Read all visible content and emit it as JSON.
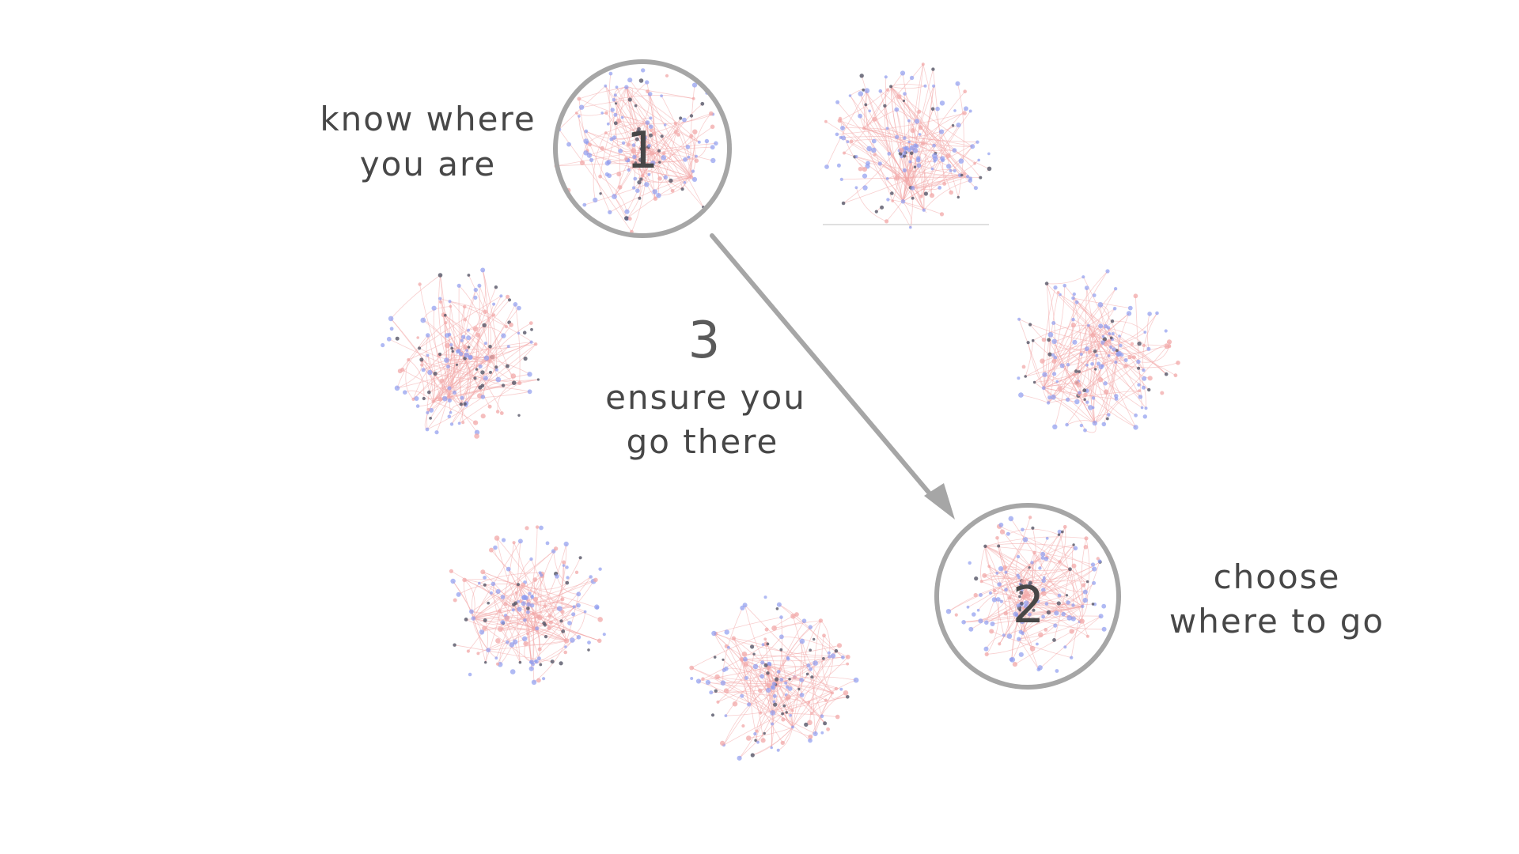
{
  "labels": {
    "step1_line1": "know where",
    "step1_line2": "you are",
    "step1_number": "1",
    "step2_number": "2",
    "step2_line1": "choose",
    "step2_line2": "where to go",
    "step3_number": "3",
    "step3_line1": "ensure you",
    "step3_line2": "go there"
  },
  "colors": {
    "background": "#ffffff",
    "text": "#474747",
    "ring": "#a6a6a6",
    "arrow": "#a6a6a6",
    "edge_red": "#f2a8a8",
    "node_blue": "#8f9df0",
    "node_dark": "#555566"
  },
  "networks": [
    {
      "name": "network-cluster-1",
      "seed": 11
    },
    {
      "name": "network-cluster-top-right",
      "seed": 23
    },
    {
      "name": "network-cluster-left",
      "seed": 37
    },
    {
      "name": "network-cluster-right",
      "seed": 41
    },
    {
      "name": "network-cluster-bottom-left",
      "seed": 53
    },
    {
      "name": "network-cluster-bottom",
      "seed": 67
    },
    {
      "name": "network-cluster-2",
      "seed": 79
    }
  ]
}
